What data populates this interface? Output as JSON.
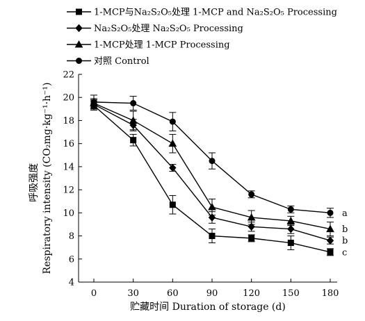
{
  "chart_data": {
    "type": "line",
    "x": [
      0,
      30,
      60,
      90,
      120,
      150,
      180
    ],
    "xlabel": "贮藏时间 Duration of storage (d)",
    "ylabel": "呼吸强度 Respiratory intensity (CO₂mg·kg⁻¹·h⁻¹)",
    "ylabel_cn": "呼吸强度",
    "ylabel_en": "Respiratory intensity (CO₂mg·kg⁻¹·h⁻¹)",
    "xlim": [
      0,
      180
    ],
    "ylim": [
      4,
      22
    ],
    "xticks": [
      "0",
      "30",
      "60",
      "90",
      "120",
      "150",
      "180"
    ],
    "yticks": [
      "4",
      "6",
      "8",
      "10",
      "12",
      "14",
      "16",
      "18",
      "20",
      "22"
    ],
    "grid": false,
    "legend_position": "top-left",
    "series": [
      {
        "name": "1-MCP与Na₂S₂O₅处理 1-MCP and Na₂S₂O₅ Processing",
        "marker": "square",
        "values": [
          19.3,
          16.3,
          10.7,
          8.0,
          7.8,
          7.4,
          6.6
        ],
        "errors": [
          0.4,
          0.5,
          0.8,
          0.6,
          0.3,
          0.6,
          0.3
        ],
        "significance": "c"
      },
      {
        "name": "Na₂S₂O₅处理 Na₂S₂O₅ Processing",
        "marker": "diamond",
        "values": [
          19.4,
          17.6,
          13.9,
          9.6,
          8.8,
          8.6,
          7.6
        ],
        "errors": [
          0.4,
          0.5,
          0.3,
          0.5,
          0.4,
          0.4,
          0.3
        ],
        "significance": "b"
      },
      {
        "name": "1-MCP处理 1-MCP Processing",
        "marker": "triangle",
        "values": [
          19.5,
          18.0,
          16.0,
          10.5,
          9.6,
          9.3,
          8.6
        ],
        "errors": [
          0.4,
          0.8,
          0.8,
          0.7,
          0.6,
          0.4,
          0.6
        ],
        "significance": "b"
      },
      {
        "name": "对照 Control",
        "marker": "circle",
        "values": [
          19.6,
          19.5,
          17.9,
          14.5,
          11.6,
          10.3,
          10.0
        ],
        "errors": [
          0.6,
          0.6,
          0.8,
          0.7,
          0.3,
          0.3,
          0.4
        ],
        "significance": "a"
      }
    ]
  }
}
